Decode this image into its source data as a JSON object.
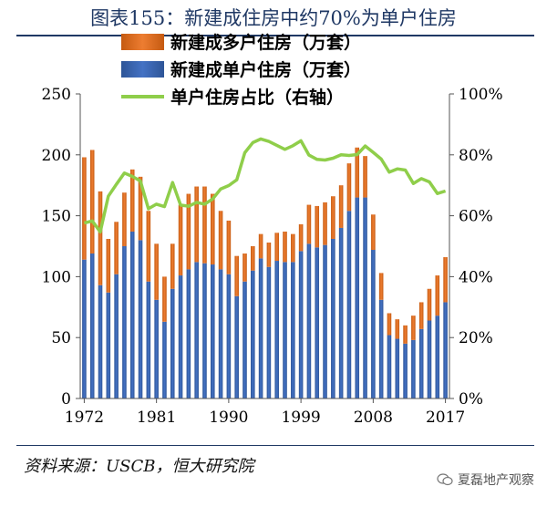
{
  "title": "图表155：新建成住房中约70%为单户住房",
  "source": "资料来源：USCB，恒大研究院",
  "watermark": "夏磊地产观察",
  "colors": {
    "multi": "#ed7d31",
    "single": "#4472c4",
    "share": "#8fce4a",
    "title": "#1f3864"
  },
  "chart_data": {
    "type": "bar",
    "stacked": true,
    "x": [
      1972,
      1973,
      1974,
      1975,
      1976,
      1977,
      1978,
      1979,
      1980,
      1981,
      1982,
      1983,
      1984,
      1985,
      1986,
      1987,
      1988,
      1989,
      1990,
      1991,
      1992,
      1993,
      1994,
      1995,
      1996,
      1997,
      1998,
      1999,
      2000,
      2001,
      2002,
      2003,
      2004,
      2005,
      2006,
      2007,
      2008,
      2009,
      2010,
      2011,
      2012,
      2013,
      2014,
      2015,
      2016,
      2017
    ],
    "x_tick_labels": [
      "1972",
      "1981",
      "1990",
      "1999",
      "2008",
      "2017"
    ],
    "x_tick_values": [
      1972,
      1981,
      1990,
      1999,
      2008,
      2017
    ],
    "series": [
      {
        "name": "新建成多户住房（万套）",
        "kind": "bar",
        "stack": "top",
        "values": [
          84,
          85,
          77,
          44,
          43,
          44,
          51,
          52,
          58,
          46,
          37,
          37,
          58,
          62,
          62,
          63,
          58,
          48,
          44,
          33,
          23,
          20,
          20,
          20,
          23,
          25,
          23,
          22,
          32,
          34,
          35,
          35,
          35,
          39,
          41,
          34,
          29,
          22,
          18,
          16,
          15,
          20,
          22,
          26,
          33,
          37
        ]
      },
      {
        "name": "新建成单户住房（万套）",
        "kind": "bar",
        "stack": "base",
        "values": [
          114,
          119,
          93,
          87,
          102,
          125,
          137,
          130,
          96,
          81,
          63,
          90,
          101,
          106,
          112,
          111,
          110,
          106,
          102,
          84,
          96,
          105,
          115,
          108,
          113,
          112,
          112,
          121,
          127,
          124,
          126,
          131,
          140,
          154,
          165,
          165,
          122,
          81,
          52,
          49,
          45,
          48,
          57,
          64,
          68,
          79
        ]
      },
      {
        "name": "单户住房占比（右轴）",
        "kind": "line",
        "axis": "right",
        "values": [
          57.6,
          58.3,
          54.7,
          66.4,
          70.3,
          74.0,
          72.9,
          71.4,
          62.3,
          63.8,
          63.0,
          70.9,
          63.5,
          63.1,
          64.4,
          63.8,
          65.5,
          68.8,
          69.9,
          71.8,
          80.7,
          84.0,
          85.2,
          84.4,
          83.1,
          81.8,
          83.0,
          84.6,
          79.9,
          78.5,
          78.3,
          78.9,
          80.0,
          79.8,
          80.1,
          82.9,
          80.8,
          78.6,
          74.3,
          75.4,
          75.0,
          70.6,
          72.2,
          71.1,
          67.3,
          68.1
        ]
      }
    ],
    "y_left": {
      "min": 0,
      "max": 250,
      "ticks": [
        "0",
        "50",
        "100",
        "150",
        "200",
        "250"
      ],
      "tick_values": [
        0,
        50,
        100,
        150,
        200,
        250
      ]
    },
    "y_right": {
      "min": 0,
      "max": 100,
      "ticks": [
        "0%",
        "20%",
        "40%",
        "60%",
        "80%",
        "100%"
      ],
      "tick_values": [
        0,
        20,
        40,
        60,
        80,
        100
      ]
    },
    "legend_position": "top-left",
    "grid": false
  }
}
